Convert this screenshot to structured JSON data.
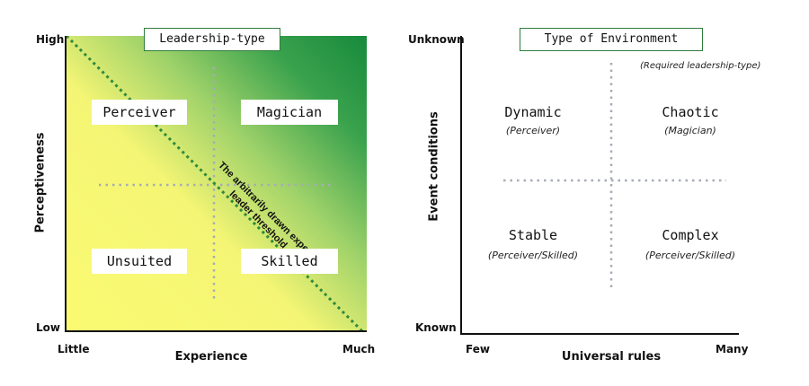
{
  "left_chart": {
    "title": "Leadership-type",
    "y_axis": {
      "label": "Perceptiveness",
      "high": "High",
      "low": "Low"
    },
    "x_axis": {
      "label": "Experience",
      "low": "Little",
      "high": "Much"
    },
    "quadrants": {
      "top_left": "Perceiver",
      "top_right": "Magician",
      "bottom_left": "Unsuited",
      "bottom_right": "Skilled"
    },
    "threshold_label_line1": "The arbitrarily drawn expert-",
    "threshold_label_line2": "leader threshold",
    "colors": {
      "gradient_light": "#fbfb72",
      "gradient_dark": "#178a3c",
      "threshold": "#2f8a3a"
    }
  },
  "right_chart": {
    "title": "Type of Environment",
    "note": "(Required leadership-type)",
    "y_axis": {
      "label": "Event conditions",
      "high": "Unknown",
      "low": "Known"
    },
    "x_axis": {
      "label": "Universal rules",
      "low": "Few",
      "high": "Many"
    },
    "quadrants": {
      "top_left": {
        "name": "Dynamic",
        "type": "(Perceiver)"
      },
      "top_right": {
        "name": "Chaotic",
        "type": "(Magician)"
      },
      "bottom_left": {
        "name": "Stable",
        "type": "(Perceiver/Skilled)"
      },
      "bottom_right": {
        "name": "Complex",
        "type": "(Perceiver/Skilled)"
      }
    }
  }
}
